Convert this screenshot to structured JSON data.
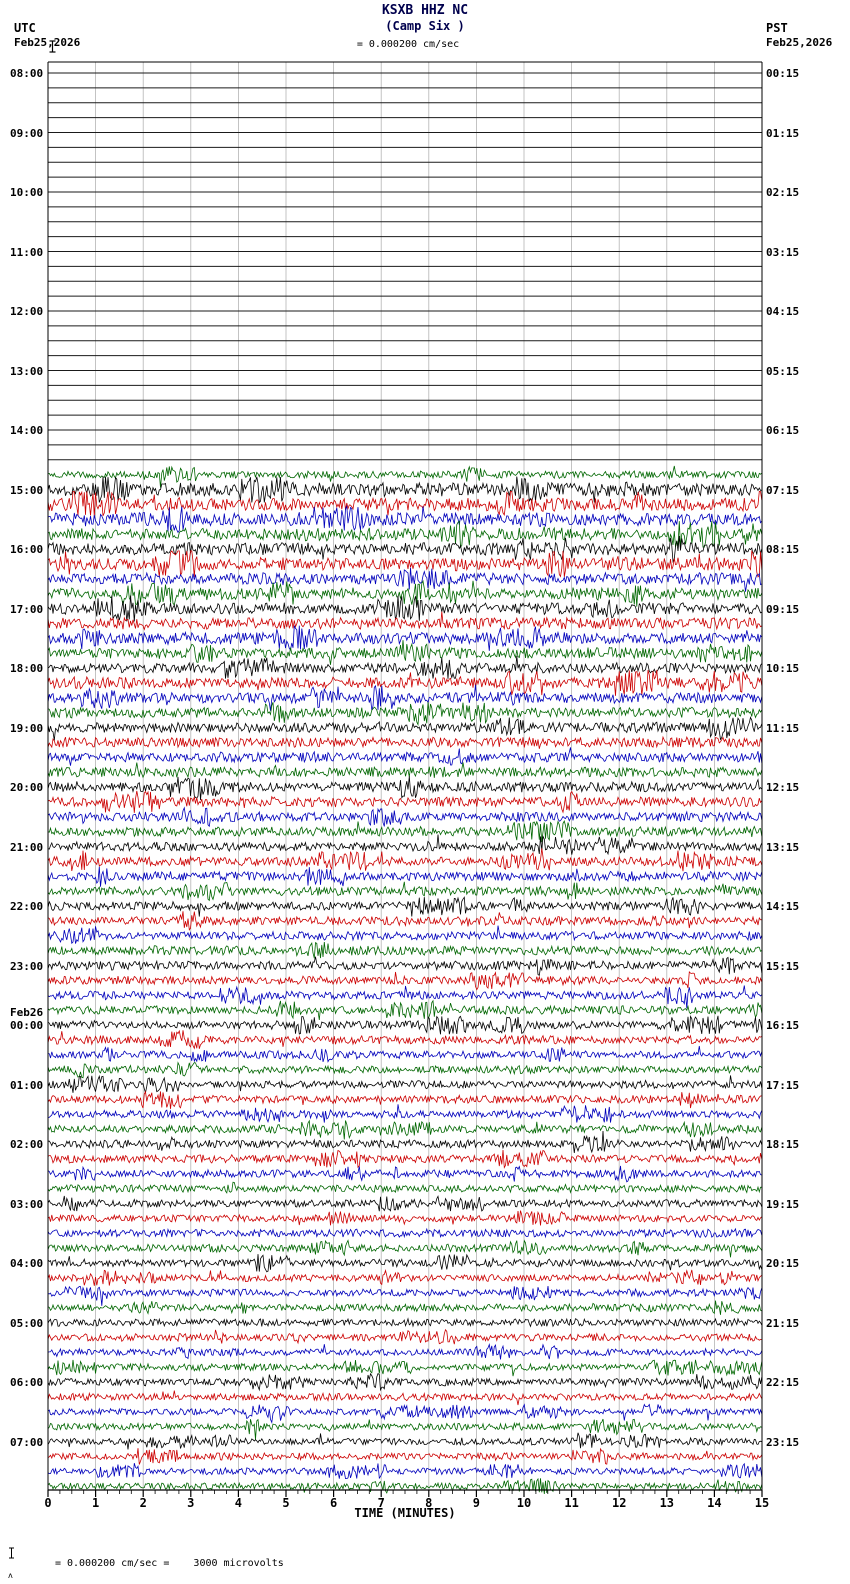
{
  "title": {
    "line1": "KSXB HHZ NC",
    "line2": "(Camp Six )"
  },
  "header": {
    "left_tz": "UTC",
    "left_date": "Feb25,2026",
    "right_tz": "PST",
    "right_date": "Feb25,2026",
    "scale_label": "= 0.000200 cm/sec"
  },
  "footer": {
    "marker": "ʌ",
    "scale_note": "= 0.000200 cm/sec =    3000 microvolts"
  },
  "chart_data": {
    "type": "line",
    "subtype": "helicorder-seismogram",
    "station": "KSXB",
    "channel": "HHZ",
    "network": "NC",
    "station_name": "Camp Six",
    "minutes_per_row": 15,
    "rows_per_hour": 4,
    "total_rows": 96,
    "grid": "on",
    "gridline_color": "#b4b4b4",
    "row_colors_cycle": [
      "#000000",
      "#cc0000",
      "#0000bb",
      "#006600"
    ],
    "flat_trace_color": "#1a1a1a",
    "utc_hour_labels": [
      "08:00",
      "09:00",
      "10:00",
      "11:00",
      "12:00",
      "13:00",
      "14:00",
      "15:00",
      "16:00",
      "17:00",
      "18:00",
      "19:00",
      "20:00",
      "21:00",
      "22:00",
      "23:00",
      "00:00",
      "01:00",
      "02:00",
      "03:00",
      "04:00",
      "05:00",
      "06:00",
      "07:00"
    ],
    "pst_hour_labels": [
      "00:15",
      "01:15",
      "02:15",
      "03:15",
      "04:15",
      "05:15",
      "06:15",
      "07:15",
      "08:15",
      "09:15",
      "10:15",
      "11:15",
      "12:15",
      "13:15",
      "14:15",
      "15:15",
      "16:15",
      "17:15",
      "18:15",
      "19:15",
      "20:15",
      "21:15",
      "22:15",
      "23:15"
    ],
    "date_change": {
      "label": "Feb26",
      "at_hour_label": "00:00",
      "at_hour_index": 16
    },
    "x_axis": {
      "label": "TIME (MINUTES)",
      "ticks": [
        "0",
        "1",
        "2",
        "3",
        "4",
        "5",
        "6",
        "7",
        "8",
        "9",
        "10",
        "11",
        "12",
        "13",
        "14",
        "15"
      ],
      "range": [
        0,
        15
      ],
      "minor_ticks_per_major": 4
    },
    "first_active_row": 27,
    "row_amplitudes": [
      0,
      0,
      0,
      0,
      0,
      0,
      0,
      0,
      0,
      0,
      0,
      0,
      0,
      0,
      0,
      0,
      0,
      0,
      0,
      0,
      0,
      0,
      0,
      0,
      0,
      0,
      0,
      3.5,
      6.5,
      6.5,
      6,
      6,
      6,
      6,
      5.5,
      5.5,
      5.5,
      5.5,
      5.5,
      5,
      5,
      5.5,
      5,
      5,
      5,
      5,
      4.8,
      4.8,
      4.8,
      4.8,
      4.5,
      4.5,
      4.5,
      4.5,
      4.5,
      4.2,
      4.2,
      4.2,
      4.2,
      4.2,
      4.2,
      4,
      4,
      4,
      4,
      4,
      3.8,
      3.8,
      3.8,
      3.8,
      3.8,
      3.8,
      3.8,
      3.8,
      3.6,
      3.6,
      3.6,
      3.6,
      3.6,
      3.6,
      3.6,
      3.5,
      3.5,
      3.5,
      3.5,
      3.5,
      3.4,
      3.4,
      3.4,
      3.4,
      3.3,
      3.3,
      3.3,
      3.3,
      3.2,
      3.2
    ],
    "scale_cm_per_sec": "0.000200",
    "microvolts": "3000"
  }
}
